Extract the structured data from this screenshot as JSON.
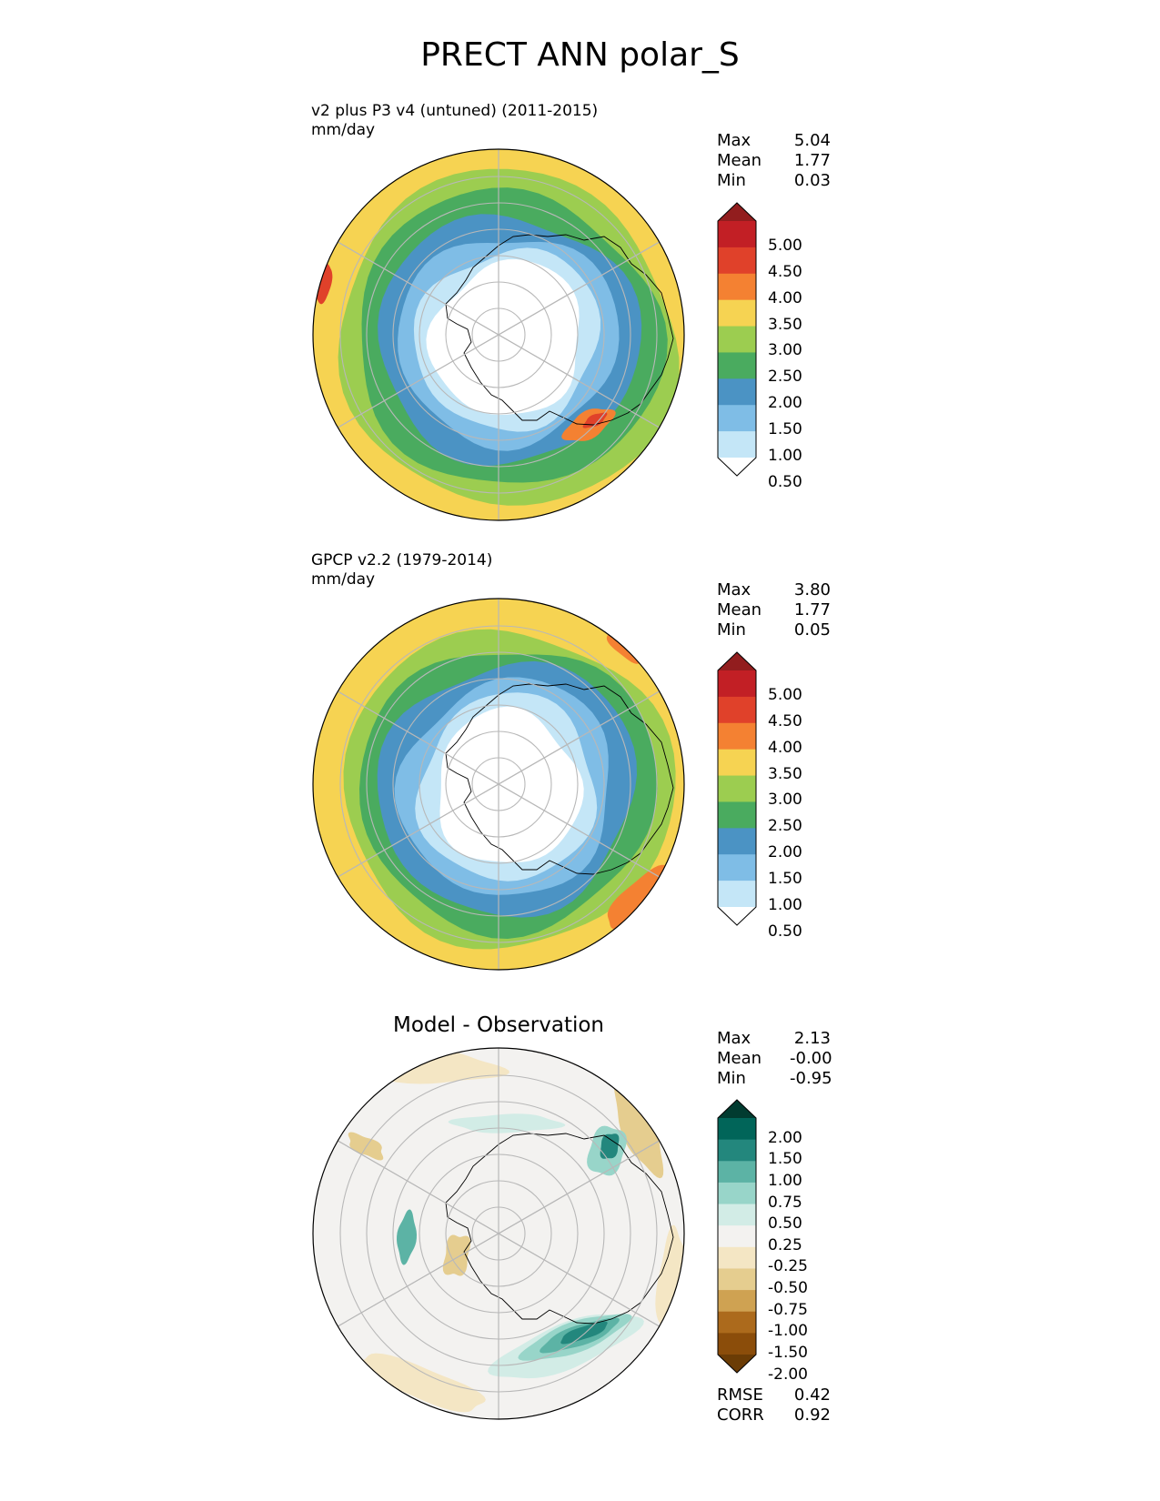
{
  "title": "PRECT ANN polar_S",
  "colors": {
    "precip_scale": [
      "#ffffff",
      "#c4e6f7",
      "#7fbde6",
      "#4b93c4",
      "#4aab5f",
      "#9ccd50",
      "#f6d352",
      "#f48132",
      "#e0412a",
      "#c21f25",
      "#921d1e"
    ],
    "diff_scale": [
      "#6b3c05",
      "#8b4d0a",
      "#ac6a1c",
      "#cfa252",
      "#e5cd8f",
      "#f4e6c4",
      "#f3f2f0",
      "#d2ece6",
      "#98d5c9",
      "#5cb3a5",
      "#23877d",
      "#016559",
      "#013b30"
    ],
    "ocean_default": "#f6d352",
    "coastline": "#000000",
    "gridline": "#b8b8b8"
  },
  "chart_data": [
    {
      "type": "heatmap",
      "projection": "south polar stereographic",
      "title": "v2 plus P3 v4 (untuned) (2011-2015)",
      "units": "mm/day",
      "stats": {
        "Max": "5.04",
        "Mean": "1.77",
        "Min": "0.03"
      },
      "colorbar_ticks": [
        "5.00",
        "4.50",
        "4.00",
        "3.50",
        "3.00",
        "2.50",
        "2.00",
        "1.50",
        "1.00",
        "0.50"
      ],
      "levels": [
        0.5,
        1.0,
        1.5,
        2.0,
        2.5,
        3.0,
        3.5,
        4.0,
        4.5,
        5.0
      ],
      "extend": "both",
      "grid": true
    },
    {
      "type": "heatmap",
      "projection": "south polar stereographic",
      "title": "GPCP v2.2 (1979-2014)",
      "units": "mm/day",
      "stats": {
        "Max": "3.80",
        "Mean": "1.77",
        "Min": "0.05"
      },
      "colorbar_ticks": [
        "5.00",
        "4.50",
        "4.00",
        "3.50",
        "3.00",
        "2.50",
        "2.00",
        "1.50",
        "1.00",
        "0.50"
      ],
      "levels": [
        0.5,
        1.0,
        1.5,
        2.0,
        2.5,
        3.0,
        3.5,
        4.0,
        4.5,
        5.0
      ],
      "extend": "both",
      "grid": true
    },
    {
      "type": "heatmap",
      "projection": "south polar stereographic",
      "title": "Model - Observation",
      "stats": {
        "Max": "2.13",
        "Mean": "-0.00",
        "Min": "-0.95"
      },
      "colorbar_ticks": [
        "2.00",
        "1.50",
        "1.00",
        "0.75",
        "0.50",
        "0.25",
        "-0.25",
        "-0.50",
        "-0.75",
        "-1.00",
        "-1.50",
        "-2.00"
      ],
      "levels": [
        -2.0,
        -1.5,
        -1.0,
        -0.75,
        -0.5,
        -0.25,
        0.25,
        0.5,
        0.75,
        1.0,
        1.5,
        2.0
      ],
      "extend": "both",
      "grid": true,
      "metrics": {
        "RMSE": "0.42",
        "CORR": "0.92"
      }
    }
  ]
}
